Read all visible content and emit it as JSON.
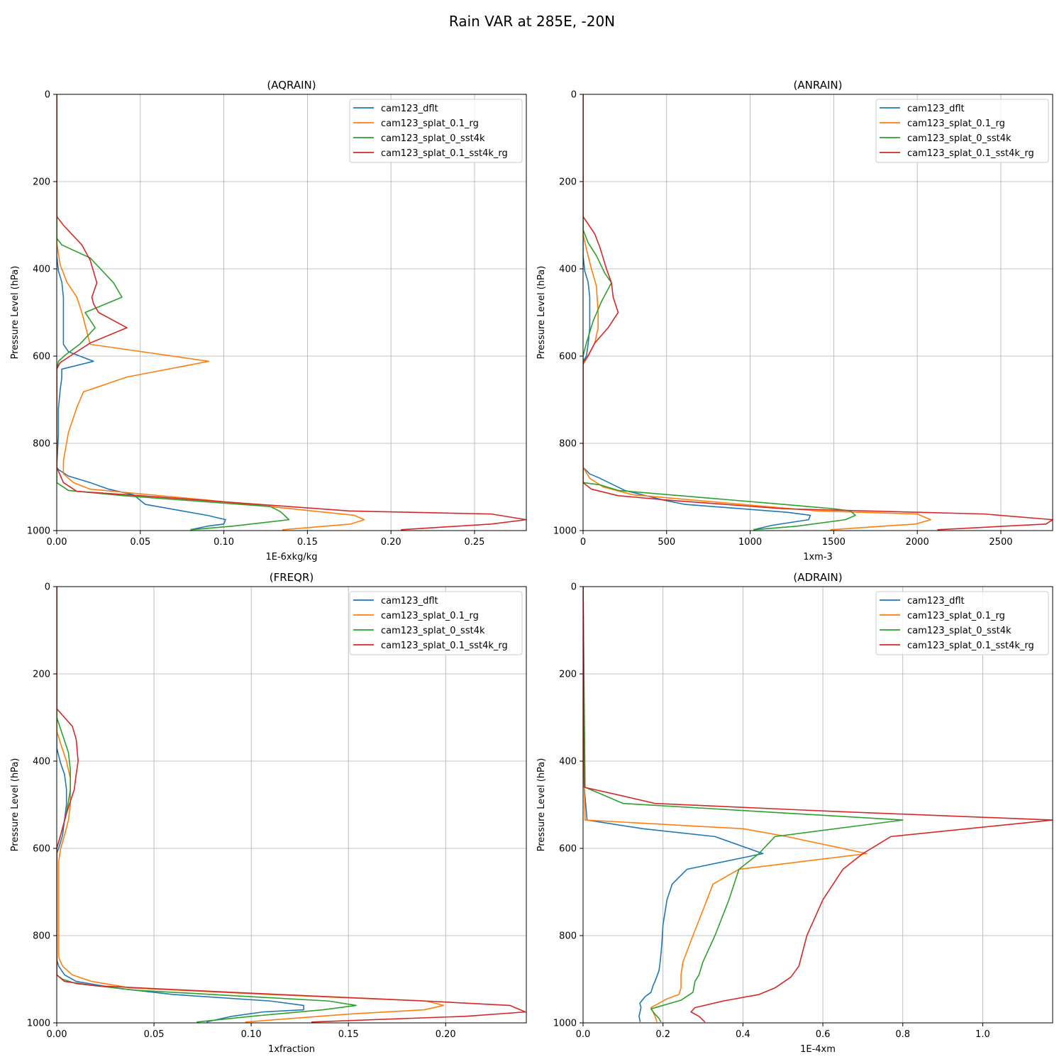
{
  "figure": {
    "suptitle": "Rain VAR at 285E, -20N"
  },
  "colors": {
    "cam123_dflt": "#1f77b4",
    "cam123_splat_0.1_rg": "#ff7f0e",
    "cam123_splat_0_sst4k": "#2ca02c",
    "cam123_splat_0.1_sst4k_rg": "#d62728",
    "grid": "#b0b0b0"
  },
  "chart_data": [
    {
      "type": "line",
      "title": "(AQRAIN)",
      "xlabel": "1E-6xkg/kg",
      "ylabel": "Pressure Level (hPa)",
      "xlim": [
        0,
        0.281
      ],
      "ylim": [
        1000,
        0
      ],
      "xticks": [
        "0.00",
        "0.05",
        "0.10",
        "0.15",
        "0.20",
        "0.25"
      ],
      "xtick_values": [
        0,
        0.05,
        0.1,
        0.15,
        0.2,
        0.25
      ],
      "yticks": [
        "0",
        "200",
        "400",
        "600",
        "800",
        "1000"
      ],
      "ytick_values": [
        0,
        200,
        400,
        600,
        800,
        1000
      ],
      "grid": true,
      "legend": "upper right",
      "series": [
        {
          "name": "cam123_dflt",
          "x": [
            0,
            0,
            0.001,
            0.003,
            0.004,
            0.004,
            0.004,
            0.004,
            0.007,
            0.022,
            0.003,
            0.003,
            0.002,
            0.001,
            0.001,
            0,
            0.001,
            0.007,
            0.02,
            0.031,
            0.046,
            0.053,
            0.09,
            0.101,
            0.1,
            0.09,
            0.08
          ],
          "y": [
            0,
            370,
            405,
            430,
            465,
            500,
            535,
            573,
            590,
            612,
            630,
            650,
            680,
            720,
            780,
            855,
            860,
            875,
            890,
            905,
            918,
            940,
            965,
            975,
            985,
            990,
            998
          ]
        },
        {
          "name": "cam123_splat_0.1_rg",
          "x": [
            0,
            0,
            0.002,
            0.006,
            0.012,
            0.015,
            0.02,
            0.091,
            0.042,
            0.016,
            0.012,
            0.007,
            0.004,
            0.004,
            0.01,
            0.02,
            0.09,
            0.178,
            0.184,
            0.176,
            0.135
          ],
          "y": [
            0,
            340,
            390,
            430,
            465,
            500,
            573,
            612,
            648,
            682,
            718,
            775,
            840,
            870,
            890,
            905,
            930,
            965,
            975,
            985,
            998
          ]
        },
        {
          "name": "cam123_splat_0_sst4k",
          "x": [
            0,
            0,
            0.003,
            0.02,
            0.034,
            0.039,
            0.017,
            0.023,
            0.014,
            0.005,
            0.001,
            0,
            0,
            0.007,
            0.04,
            0.128,
            0.134,
            0.139,
            0.105,
            0.08
          ],
          "y": [
            0,
            330,
            345,
            375,
            432,
            465,
            500,
            535,
            572,
            598,
            612,
            630,
            890,
            908,
            920,
            945,
            957,
            975,
            990,
            998
          ]
        },
        {
          "name": "cam123_splat_0.1_sst4k_rg",
          "x": [
            0,
            0,
            0.004,
            0.015,
            0.02,
            0.024,
            0.021,
            0.022,
            0.025,
            0.042,
            0.02,
            0.008,
            0.002,
            0,
            0,
            0.004,
            0.012,
            0.05,
            0.175,
            0.26,
            0.281,
            0.26,
            0.206
          ],
          "y": [
            0,
            280,
            300,
            345,
            380,
            432,
            465,
            480,
            500,
            535,
            570,
            600,
            615,
            630,
            855,
            890,
            910,
            920,
            955,
            962,
            975,
            985,
            998
          ]
        }
      ]
    },
    {
      "type": "line",
      "title": "(ANRAIN)",
      "xlabel": "1xm-3",
      "ylabel": "Pressure Level (hPa)",
      "xlim": [
        0,
        2810
      ],
      "ylim": [
        1000,
        0
      ],
      "xticks": [
        "0",
        "500",
        "1000",
        "1500",
        "2000",
        "2500"
      ],
      "xtick_values": [
        0,
        500,
        1000,
        1500,
        2000,
        2500
      ],
      "yticks": [
        "0",
        "200",
        "400",
        "600",
        "800",
        "1000"
      ],
      "ytick_values": [
        0,
        200,
        400,
        600,
        800,
        1000
      ],
      "grid": true,
      "legend": "upper right",
      "series": [
        {
          "name": "cam123_dflt",
          "x": [
            0,
            0,
            10,
            30,
            40,
            40,
            40,
            30,
            20,
            0,
            0,
            40,
            100,
            170,
            250,
            480,
            610,
            1220,
            1360,
            1350,
            1130,
            1020
          ],
          "y": [
            0,
            370,
            405,
            430,
            465,
            500,
            535,
            573,
            600,
            612,
            855,
            870,
            880,
            893,
            908,
            930,
            940,
            958,
            965,
            975,
            988,
            998
          ]
        },
        {
          "name": "cam123_splat_0.1_rg",
          "x": [
            0,
            0,
            20,
            50,
            80,
            90,
            90,
            70,
            0,
            0,
            40,
            120,
            300,
            1400,
            2000,
            2080,
            1990,
            1480
          ],
          "y": [
            0,
            320,
            355,
            400,
            440,
            500,
            535,
            570,
            620,
            855,
            880,
            900,
            918,
            955,
            962,
            975,
            985,
            998
          ]
        },
        {
          "name": "cam123_splat_0_sst4k",
          "x": [
            0,
            0,
            30,
            80,
            130,
            170,
            110,
            60,
            20,
            0,
            0,
            100,
            210,
            1200,
            1500,
            1600,
            1630,
            1570,
            1280,
            1020
          ],
          "y": [
            0,
            310,
            340,
            370,
            410,
            432,
            475,
            520,
            570,
            600,
            890,
            895,
            908,
            940,
            950,
            955,
            965,
            975,
            990,
            998
          ]
        },
        {
          "name": "cam123_splat_0.1_sst4k_rg",
          "x": [
            0,
            0,
            70,
            100,
            140,
            170,
            180,
            210,
            150,
            70,
            30,
            0,
            0,
            50,
            210,
            500,
            1200,
            2400,
            2810,
            2770,
            2520,
            2120
          ],
          "y": [
            0,
            280,
            320,
            350,
            400,
            432,
            465,
            500,
            535,
            570,
            600,
            615,
            890,
            905,
            920,
            930,
            950,
            962,
            975,
            985,
            990,
            998
          ]
        }
      ]
    },
    {
      "type": "line",
      "title": "(FREQR)",
      "xlabel": "1xfraction",
      "ylabel": "Pressure Level (hPa)",
      "xlim": [
        0,
        0.2415
      ],
      "ylim": [
        1000,
        0
      ],
      "xticks": [
        "0.00",
        "0.05",
        "0.10",
        "0.15",
        "0.20"
      ],
      "xtick_values": [
        0,
        0.05,
        0.1,
        0.15,
        0.2
      ],
      "yticks": [
        "0",
        "200",
        "400",
        "600",
        "800",
        "1000"
      ],
      "ytick_values": [
        0,
        200,
        400,
        600,
        800,
        1000
      ],
      "grid": true,
      "legend": "upper right",
      "series": [
        {
          "name": "cam123_dflt",
          "x": [
            0,
            0,
            0.002,
            0.004,
            0.005,
            0.005,
            0.004,
            0.003,
            0.001,
            0,
            0,
            0.001,
            0.004,
            0.01,
            0.03,
            0.06,
            0.11,
            0.127,
            0.127,
            0.106,
            0.09,
            0.077
          ],
          "y": [
            0,
            370,
            405,
            430,
            465,
            500,
            535,
            570,
            600,
            612,
            855,
            870,
            890,
            905,
            920,
            935,
            950,
            960,
            970,
            975,
            985,
            998
          ]
        },
        {
          "name": "cam123_splat_0.1_rg",
          "x": [
            0,
            0,
            0.002,
            0.005,
            0.007,
            0.007,
            0.006,
            0.004,
            0.002,
            0.001,
            0.001,
            0.001,
            0.001,
            0.003,
            0.008,
            0.018,
            0.038,
            0.11,
            0.19,
            0.199,
            0.189,
            0.15,
            0.097
          ],
          "y": [
            0,
            330,
            360,
            400,
            440,
            500,
            535,
            570,
            600,
            630,
            700,
            800,
            850,
            870,
            890,
            905,
            920,
            935,
            950,
            960,
            970,
            980,
            998
          ]
        },
        {
          "name": "cam123_splat_0_sst4k",
          "x": [
            0,
            0,
            0.003,
            0.006,
            0.007,
            0.007,
            0.005,
            0.002,
            0,
            0,
            0.003,
            0.01,
            0.04,
            0.14,
            0.154,
            0.137,
            0.1,
            0.072
          ],
          "y": [
            0,
            300,
            340,
            380,
            420,
            465,
            520,
            570,
            600,
            890,
            900,
            910,
            925,
            950,
            960,
            970,
            985,
            998
          ]
        },
        {
          "name": "cam123_splat_0.1_sst4k_rg",
          "x": [
            0,
            0,
            0.004,
            0.008,
            0.01,
            0.011,
            0.01,
            0.009,
            0.005,
            0.002,
            0,
            0,
            0.004,
            0.02,
            0.09,
            0.19,
            0.233,
            0.241,
            0.21,
            0.131
          ],
          "y": [
            0,
            280,
            300,
            320,
            350,
            400,
            430,
            465,
            520,
            570,
            600,
            890,
            905,
            915,
            930,
            950,
            960,
            975,
            985,
            998
          ]
        }
      ]
    },
    {
      "type": "line",
      "title": "(ADRAIN)",
      "xlabel": "1E-4xm",
      "ylabel": "Pressure Level (hPa)",
      "xlim": [
        0,
        1.175
      ],
      "ylim": [
        1000,
        0
      ],
      "xticks": [
        "0.0",
        "0.2",
        "0.4",
        "0.6",
        "0.8",
        "1.0"
      ],
      "xtick_values": [
        0,
        0.2,
        0.4,
        0.6,
        0.8,
        1.0
      ],
      "yticks": [
        "0",
        "200",
        "400",
        "600",
        "800",
        "1000"
      ],
      "ytick_values": [
        0,
        200,
        400,
        600,
        800,
        1000
      ],
      "grid": true,
      "legend": "upper right",
      "series": [
        {
          "name": "cam123_dflt",
          "x": [
            0,
            0.003,
            0.01,
            0.15,
            0.33,
            0.45,
            0.26,
            0.223,
            0.21,
            0.2,
            0.197,
            0.193,
            0.19,
            0.18,
            0.175,
            0.17,
            0.155,
            0.142,
            0.145,
            0.14,
            0.143
          ],
          "y": [
            0,
            460,
            535,
            555,
            573,
            612,
            648,
            682,
            718,
            775,
            820,
            860,
            880,
            905,
            915,
            930,
            940,
            955,
            965,
            985,
            998
          ]
        },
        {
          "name": "cam123_splat_0.1_rg",
          "x": [
            0,
            0.003,
            0.005,
            0.4,
            0.51,
            0.71,
            0.39,
            0.325,
            0.31,
            0.275,
            0.25,
            0.245,
            0.245,
            0.24,
            0.21,
            0.17,
            0.18,
            0.185
          ],
          "y": [
            0,
            460,
            535,
            555,
            573,
            612,
            648,
            682,
            718,
            800,
            860,
            890,
            920,
            935,
            945,
            965,
            985,
            998
          ]
        },
        {
          "name": "cam123_splat_0_sst4k",
          "x": [
            0,
            0.005,
            0.1,
            0.8,
            0.48,
            0.44,
            0.39,
            0.365,
            0.33,
            0.3,
            0.29,
            0.28,
            0.275,
            0.245,
            0.17,
            0.18,
            0.19,
            0.195
          ],
          "y": [
            0,
            460,
            497,
            535,
            573,
            612,
            648,
            718,
            800,
            860,
            890,
            905,
            930,
            948,
            968,
            980,
            990,
            998
          ]
        },
        {
          "name": "cam123_splat_0.1_sst4k_rg",
          "x": [
            0,
            0.003,
            0.1,
            0.18,
            0.62,
            1.175,
            0.77,
            0.7,
            0.65,
            0.6,
            0.56,
            0.54,
            0.52,
            0.48,
            0.44,
            0.35,
            0.28,
            0.27,
            0.29,
            0.305
          ],
          "y": [
            0,
            460,
            480,
            497,
            515,
            535,
            573,
            612,
            648,
            718,
            800,
            870,
            895,
            920,
            935,
            950,
            965,
            975,
            985,
            998
          ]
        }
      ]
    }
  ]
}
